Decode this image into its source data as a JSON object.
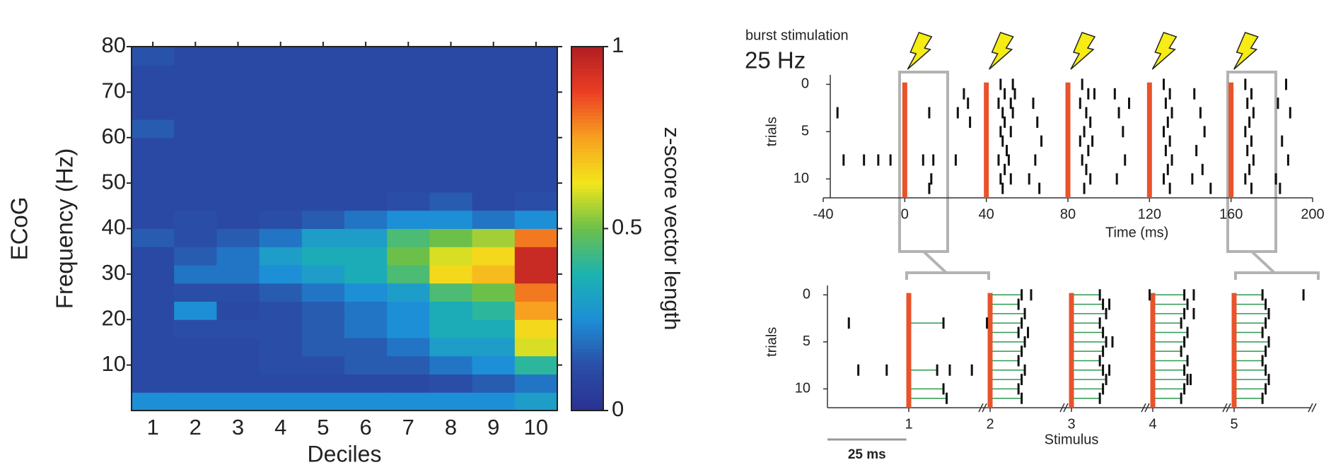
{
  "chart_data": [
    {
      "type": "heatmap",
      "ylabel": "Frequency (Hz)",
      "row_label": "ECoG",
      "xlabel": "Deciles",
      "categories": [
        "1",
        "2",
        "3",
        "4",
        "5",
        "6",
        "7",
        "8",
        "9",
        "10"
      ],
      "y_bins": [
        0,
        4,
        8,
        12,
        16,
        20,
        24,
        28,
        32,
        36,
        40,
        44,
        48,
        52,
        56,
        60,
        64,
        68,
        72,
        76,
        80
      ],
      "ylim": [
        0,
        80
      ],
      "yticks": [
        10,
        20,
        30,
        40,
        50,
        60,
        70,
        80
      ],
      "z": [
        [
          0.25,
          0.1,
          0.1,
          0.1,
          0.1,
          0.1,
          0.1,
          0.1,
          0.1,
          0.15,
          0.1,
          0.1,
          0.1,
          0.1,
          0.1,
          0.15,
          0.1,
          0.1,
          0.1,
          0.13
        ],
        [
          0.25,
          0.1,
          0.1,
          0.1,
          0.12,
          0.25,
          0.12,
          0.2,
          0.15,
          0.12,
          0.12,
          0.1,
          0.1,
          0.1,
          0.1,
          0.1,
          0.1,
          0.1,
          0.1,
          0.1
        ],
        [
          0.25,
          0.1,
          0.1,
          0.1,
          0.12,
          0.1,
          0.12,
          0.2,
          0.2,
          0.15,
          0.1,
          0.1,
          0.1,
          0.1,
          0.1,
          0.1,
          0.1,
          0.1,
          0.1,
          0.1
        ],
        [
          0.25,
          0.1,
          0.12,
          0.12,
          0.12,
          0.12,
          0.15,
          0.25,
          0.3,
          0.2,
          0.12,
          0.1,
          0.1,
          0.1,
          0.1,
          0.1,
          0.1,
          0.1,
          0.1,
          0.1
        ],
        [
          0.25,
          0.1,
          0.12,
          0.15,
          0.15,
          0.15,
          0.2,
          0.3,
          0.35,
          0.3,
          0.15,
          0.1,
          0.1,
          0.1,
          0.1,
          0.1,
          0.1,
          0.1,
          0.1,
          0.1
        ],
        [
          0.25,
          0.1,
          0.15,
          0.15,
          0.2,
          0.2,
          0.25,
          0.35,
          0.35,
          0.3,
          0.2,
          0.1,
          0.1,
          0.1,
          0.1,
          0.1,
          0.1,
          0.1,
          0.1,
          0.1
        ],
        [
          0.25,
          0.1,
          0.15,
          0.2,
          0.25,
          0.25,
          0.3,
          0.45,
          0.5,
          0.45,
          0.25,
          0.12,
          0.1,
          0.1,
          0.1,
          0.1,
          0.1,
          0.1,
          0.1,
          0.1
        ],
        [
          0.25,
          0.12,
          0.2,
          0.3,
          0.35,
          0.35,
          0.45,
          0.65,
          0.6,
          0.5,
          0.25,
          0.15,
          0.1,
          0.1,
          0.1,
          0.1,
          0.1,
          0.1,
          0.1,
          0.1
        ],
        [
          0.25,
          0.15,
          0.25,
          0.3,
          0.35,
          0.4,
          0.5,
          0.7,
          0.65,
          0.55,
          0.2,
          0.1,
          0.1,
          0.1,
          0.1,
          0.1,
          0.1,
          0.1,
          0.1,
          0.1
        ],
        [
          0.3,
          0.2,
          0.4,
          0.6,
          0.65,
          0.75,
          0.8,
          0.95,
          0.95,
          0.8,
          0.25,
          0.12,
          0.1,
          0.1,
          0.1,
          0.1,
          0.1,
          0.1,
          0.1,
          0.1
        ]
      ],
      "colormap": [
        "#2b3192",
        "#2a4fa8",
        "#1d8fd6",
        "#1cb3b0",
        "#6cc04a",
        "#f2e61b",
        "#f8a01f",
        "#ec3e24",
        "#b01e23"
      ],
      "colorbar": {
        "label": "z-score vector length",
        "lim": [
          0,
          1
        ],
        "ticks": [
          0,
          0.5,
          1
        ]
      }
    },
    {
      "type": "raster",
      "title": "burst stimulation",
      "subtitle": "25 Hz",
      "xlabel": "Time (ms)",
      "ylabel": "trials",
      "xlim": [
        -40,
        200
      ],
      "xticks": [
        -40,
        0,
        40,
        80,
        120,
        160,
        200
      ],
      "ylim": [
        -1,
        12
      ],
      "yticks": [
        0,
        5,
        10
      ],
      "y_reversed": true,
      "stimuli": [
        0,
        40,
        80,
        120,
        160
      ],
      "stimulus_color": "#e8532b",
      "spike_color": "#111111",
      "x": [
        -33,
        -30,
        -20,
        -13,
        -7,
        12,
        9,
        14,
        13,
        12,
        26,
        25,
        29,
        31,
        32,
        47,
        53,
        49,
        54,
        46,
        52,
        48,
        53,
        49,
        47,
        52,
        48,
        50,
        46,
        51,
        49,
        47,
        52,
        48,
        63,
        65,
        67,
        64,
        61,
        66,
        87,
        90,
        86,
        89,
        91,
        88,
        86,
        90,
        87,
        89,
        91,
        88,
        93,
        92,
        103,
        105,
        107,
        108,
        104,
        110,
        127,
        130,
        128,
        131,
        129,
        127,
        130,
        128,
        131,
        129,
        127,
        130,
        142,
        145,
        147,
        143,
        146,
        141,
        150,
        167,
        170,
        168,
        171,
        169,
        167,
        170,
        168,
        171,
        169,
        167,
        170,
        183,
        187,
        185,
        188,
        182,
        189,
        184
      ],
      "y": [
        3,
        8,
        8,
        8,
        8,
        3,
        8,
        8,
        10,
        11,
        3,
        8,
        1,
        2,
        4,
        0,
        0,
        1,
        1,
        2,
        2,
        3,
        3,
        4,
        5,
        5,
        6,
        7,
        8,
        8,
        9,
        10,
        10,
        11,
        2,
        4,
        6,
        8,
        10,
        11,
        0,
        1,
        2,
        3,
        4,
        5,
        6,
        7,
        8,
        9,
        10,
        11,
        1,
        6,
        1,
        3,
        5,
        8,
        10,
        2,
        0,
        1,
        2,
        3,
        4,
        5,
        6,
        7,
        8,
        9,
        10,
        11,
        1,
        3,
        5,
        7,
        9,
        10,
        11,
        0,
        1,
        2,
        3,
        4,
        5,
        6,
        7,
        8,
        9,
        10,
        11,
        2,
        0,
        6,
        8,
        10,
        3,
        11
      ]
    },
    {
      "type": "aligned_raster",
      "xlabel": "Stimulus",
      "ylabel": "trials",
      "xlim": [
        0,
        6
      ],
      "xticks": [
        1,
        2,
        3,
        4,
        5
      ],
      "ylim": [
        -1,
        12
      ],
      "yticks": [
        0,
        5,
        10
      ],
      "y_reversed": true,
      "stimulus_color": "#e8532b",
      "spike_color": "#111111",
      "latency_color": "#2e9a4e",
      "scale_bar": {
        "value": 25,
        "label": "25 ms"
      },
      "stimulus": [
        1,
        1,
        1,
        1,
        1,
        1,
        1,
        1,
        1,
        2,
        2,
        2,
        2,
        2,
        2,
        2,
        2,
        2,
        2,
        2,
        2,
        2,
        2,
        2,
        3,
        3,
        3,
        3,
        3,
        3,
        3,
        3,
        3,
        3,
        3,
        3,
        3,
        3,
        3,
        4,
        4,
        4,
        4,
        4,
        4,
        4,
        4,
        4,
        4,
        4,
        4,
        4,
        4,
        4,
        4,
        5,
        5,
        5,
        5,
        5,
        5,
        5,
        5,
        5,
        5,
        5,
        5,
        5
      ],
      "latency_ms": [
        -19,
        -16,
        -7,
        11,
        9,
        13,
        20,
        11,
        12,
        10,
        9,
        11,
        10,
        9,
        11,
        10,
        9,
        11,
        10,
        9,
        10,
        13,
        12,
        -1,
        9,
        10,
        11,
        9,
        10,
        11,
        10,
        9,
        10,
        11,
        10,
        9,
        12,
        13,
        12,
        10,
        11,
        10,
        9,
        11,
        10,
        9,
        11,
        10,
        11,
        10,
        9,
        -1,
        13,
        13,
        12,
        9,
        10,
        11,
        10,
        9,
        11,
        10,
        9,
        10,
        11,
        10,
        9,
        22
      ],
      "trial": [
        3,
        8,
        8,
        3,
        8,
        8,
        8,
        10,
        11,
        0,
        1,
        2,
        3,
        4,
        5,
        6,
        7,
        8,
        9,
        10,
        11,
        0,
        4,
        3,
        0,
        1,
        2,
        3,
        4,
        5,
        6,
        7,
        8,
        9,
        10,
        11,
        1,
        5,
        8,
        0,
        1,
        2,
        3,
        4,
        5,
        6,
        7,
        8,
        9,
        10,
        11,
        0,
        0,
        2,
        9,
        0,
        1,
        2,
        3,
        4,
        5,
        6,
        7,
        8,
        9,
        10,
        11,
        0
      ]
    }
  ]
}
